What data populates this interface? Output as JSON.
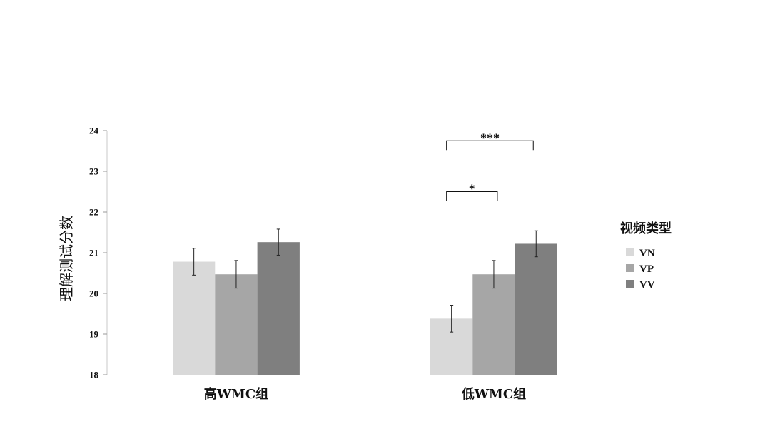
{
  "chart_data": {
    "type": "bar",
    "ylabel": "理解测试分数",
    "xlabel": "",
    "ylim": [
      18,
      24
    ],
    "yticks": [
      18,
      19,
      20,
      21,
      22,
      23,
      24
    ],
    "categories": [
      "高WMC组",
      "低WMC组"
    ],
    "legend": {
      "title": "视频类型",
      "placement": "right"
    },
    "series": [
      {
        "name": "VN",
        "color": "#d9d9d9",
        "values": [
          20.78,
          19.38
        ],
        "errors": [
          0.33,
          0.33
        ]
      },
      {
        "name": "VP",
        "color": "#a6a6a6",
        "values": [
          20.47,
          20.47
        ],
        "errors": [
          0.34,
          0.34
        ]
      },
      {
        "name": "VV",
        "color": "#7f7f7f",
        "values": [
          21.26,
          21.22
        ],
        "errors": [
          0.32,
          0.32
        ]
      }
    ],
    "annotations": [
      {
        "text": "*",
        "category": "低WMC组",
        "from": "VN",
        "to": "VP",
        "y": 22.5
      },
      {
        "text": "***",
        "category": "低WMC组",
        "from": "VN",
        "to": "VV",
        "y": 23.75
      }
    ],
    "grid": false
  }
}
